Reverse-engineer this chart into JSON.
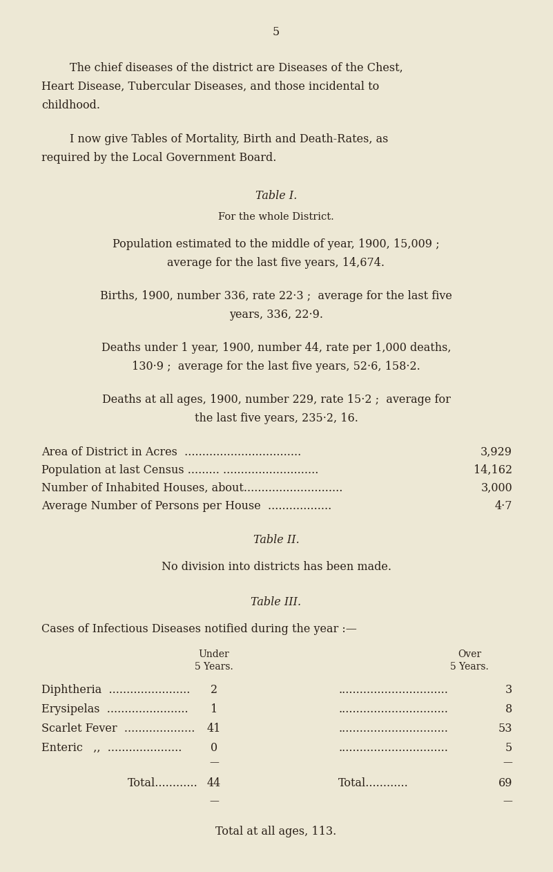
{
  "bg_color": "#ede8d5",
  "text_color": "#2a2018",
  "page_number": "5",
  "para1_indent": "        The chief diseases of the district are Diseases of the Chest,",
  "para1_line2": "Heart Disease, Tubercular Diseases, and those incidental to",
  "para1_line3": "childhood.",
  "para2_indent": "        I now give Tables of Mortality, Birth and Death-Rates, as",
  "para2_line2": "required by the Local Government Board.",
  "table1_title": "Table I.",
  "table1_subtitle": "For the whole District.",
  "pop_line1": "Population estimated to the middle of year, 1900, 15,009 ;",
  "pop_line2": "average for the last five years, 14,674.",
  "births_line1": "Births, 1900, number 336, rate 22·3 ;  average for the last five",
  "births_line2": "years, 336, 22·9.",
  "deaths1_line1": "Deaths under 1 year, 1900, number 44, rate per 1,000 deaths,",
  "deaths1_line2": "130·9 ;  average for the last five years, 52·6, 158·2.",
  "deaths2_line1": "Deaths at all ages, 1900, number 229, rate 15·2 ;  average for",
  "deaths2_line2": "the last five years, 235·2, 16.",
  "area_label": "Area of District in Acres  .................................",
  "area_dots": "...............",
  "area_val": "3,929",
  "pop_label": "Population at last Census ......... ...........................",
  "pop_val": "14,162",
  "houses_label": "Number of Inhabited Houses, about............................",
  "houses_val": "3,000",
  "avg_label": "Average Number of Persons per House  ..................",
  "avg_val": "4·7",
  "table2_title": "Table II.",
  "table2_text": "No division into districts has been made.",
  "table3_title": "Table III.",
  "table3_intro": "Cases of Infectious Diseases notified during the year :—",
  "col_under1": "Under",
  "col_under2": "5 Years.",
  "col_over1": "Over",
  "col_over2": "5 Years.",
  "d_name": [
    "Diphtheria  .......................",
    "Erysipelas  .......................",
    "Scarlet Fever  ....................",
    "Enteric   ,,  ....................."
  ],
  "d_under": [
    "2",
    "1",
    "41",
    "0"
  ],
  "d_dots": [
    "...............................",
    "...............................",
    "...............................",
    "..............................."
  ],
  "d_over": [
    "3",
    "8",
    "53",
    "5"
  ],
  "total_label_left": "Total............",
  "total_under": "44",
  "total_label_right": "Total............",
  "total_over": "69",
  "grand_total": "Total at all ages, 113."
}
